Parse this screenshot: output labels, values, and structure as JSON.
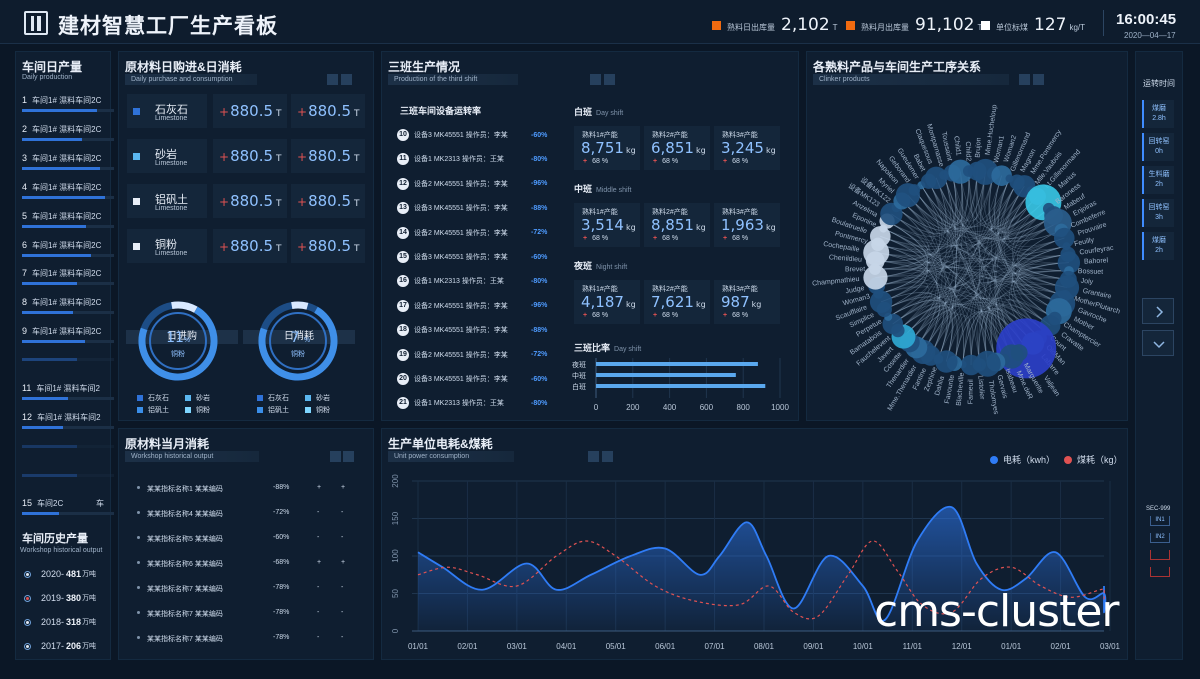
{
  "header": {
    "title": "建材智慧工厂生产看板",
    "stats": [
      {
        "label": "熟料日出库量",
        "value": "2,102",
        "unit": "T",
        "color": "#f06a10"
      },
      {
        "label": "熟料月出库量",
        "value": "91,102",
        "unit": "T",
        "color": "#f06a10"
      },
      {
        "label": "单位标煤",
        "value": "127",
        "unit": "kg/T",
        "color": "#ffffff"
      }
    ],
    "time": "16:00:45",
    "date": "2020—04—17"
  },
  "left": {
    "daily": {
      "title": "车间日产量",
      "subtitle": "Daily production",
      "items": [
        {
          "no": "1",
          "text": "车间1# 濕料车间2C",
          "fill": 0.82
        },
        {
          "no": "2",
          "text": "车间1# 濕料车间2C",
          "fill": 0.65
        },
        {
          "no": "3",
          "text": "车间1# 濕料车间2C",
          "fill": 0.85
        },
        {
          "no": "4",
          "text": "车间1# 濕料车间2C",
          "fill": 0.9
        },
        {
          "no": "5",
          "text": "车间1# 濕料车间2C",
          "fill": 0.7
        },
        {
          "no": "6",
          "text": "车间1# 濕料车间2C",
          "fill": 0.75
        },
        {
          "no": "7",
          "text": "车间1# 濕料车间2C",
          "fill": 0.6
        },
        {
          "no": "8",
          "text": "车间1# 濕料车间2C",
          "fill": 0.55
        },
        {
          "no": "9",
          "text": "车间1# 濕料车间2C",
          "fill": 0.68
        },
        {
          "no": "11",
          "text": "车间1# 濕料车间2",
          "fill": 0.5
        },
        {
          "no": "12",
          "text": "车间1# 濕料车间2",
          "fill": 0.45
        },
        {
          "no": "15",
          "text": "车间2C",
          "fill": 0.4
        }
      ],
      "item15_suffix": "车"
    },
    "history": {
      "title": "车间历史产量",
      "subtitle": "Workshop historical output",
      "items": [
        {
          "year": "2020-",
          "value": "481",
          "unit": "万吨",
          "red": false
        },
        {
          "year": "2019-",
          "value": "380",
          "unit": "万吨",
          "red": true
        },
        {
          "year": "2018-",
          "value": "318",
          "unit": "万吨",
          "red": false
        },
        {
          "year": "2017-",
          "value": "206",
          "unit": "万吨",
          "red": false
        }
      ]
    }
  },
  "materials": {
    "title": "原材料日购进&日消耗",
    "subtitle": "Daily purchase and consumption",
    "items": [
      {
        "cn": "石灰石",
        "en": "Limestone",
        "icon_color": "#2f72d8",
        "v1": "880.5",
        "v2": "880.5",
        "unit": "T"
      },
      {
        "cn": "砂岩",
        "en": "Limestone",
        "icon_color": "#5bb7f0",
        "v1": "880.5",
        "v2": "880.5",
        "unit": "T"
      },
      {
        "cn": "铝矾土",
        "en": "Limestone",
        "icon_color": "#e8eef7",
        "v1": "880.5",
        "v2": "880.5",
        "unit": "T"
      },
      {
        "cn": "铜粉",
        "en": "Limestone",
        "icon_color": "#e8eef7",
        "v1": "880.5",
        "v2": "880.5",
        "unit": "T"
      }
    ],
    "plus": "+",
    "donuts": [
      {
        "head": "日进购",
        "value": "11",
        "pct_unit": "%",
        "label": "铜粉",
        "fill": 0.11
      },
      {
        "head": "日消耗",
        "value": "7",
        "pct_unit": "%",
        "label": "铜粉",
        "fill": 0.07
      }
    ],
    "legend": [
      {
        "name": "石灰石",
        "color": "#2f72d8"
      },
      {
        "name": "砂岩",
        "color": "#5bb7f0"
      },
      {
        "name": "铝矾土",
        "color": "#3a8ee8"
      },
      {
        "name": "铜粉",
        "color": "#7fd6ff"
      }
    ]
  },
  "monthly": {
    "title": "原材料当月消耗",
    "subtitle": "Workshop historical output",
    "rows": [
      {
        "name": "某某指标名称1 某某编码",
        "pct": "-88%",
        "a": "+",
        "b": "+"
      },
      {
        "name": "某某指标名称4 某某编码",
        "pct": "-72%",
        "a": "-",
        "b": "-"
      },
      {
        "name": "某某指标名称5 某某编码",
        "pct": "-60%",
        "a": "-",
        "b": "-"
      },
      {
        "name": "某某指标名称6 某某编码",
        "pct": "-68%",
        "a": "+",
        "b": "+"
      },
      {
        "name": "某某指标名称7 某某编码",
        "pct": "-78%",
        "a": "-",
        "b": "-"
      },
      {
        "name": "某某指标名称7 某某编码",
        "pct": "-78%",
        "a": "-",
        "b": "-"
      },
      {
        "name": "某某指标名称7 某某编码",
        "pct": "-78%",
        "a": "-",
        "b": "-"
      }
    ]
  },
  "shift": {
    "title": "三班生产情况",
    "subtitle": "Production of the third shift",
    "equip_title": "三班车间设备运转率",
    "equipment": [
      {
        "no": "10",
        "text": "设备3 MK45551 操作员：李某",
        "pct": "-60%"
      },
      {
        "no": "11",
        "text": "设备1 MK2313 操作员：王某",
        "pct": "-80%"
      },
      {
        "no": "12",
        "text": "设备2 MK45551 操作员：李某",
        "pct": "-96%"
      },
      {
        "no": "13",
        "text": "设备3 MK45551 操作员：李某",
        "pct": "-88%"
      },
      {
        "no": "14",
        "text": "设备2 MK45551 操作员：李某",
        "pct": "-72%"
      },
      {
        "no": "15",
        "text": "设备3 MK45551 操作员：李某",
        "pct": "-60%"
      },
      {
        "no": "16",
        "text": "设备1 MK2313 操作员：王某",
        "pct": "-80%"
      },
      {
        "no": "17",
        "text": "设备2 MK45551 操作员：李某",
        "pct": "-96%"
      },
      {
        "no": "18",
        "text": "设备3 MK45551 操作员：李某",
        "pct": "-88%"
      },
      {
        "no": "19",
        "text": "设备2 MK45551 操作员：李某",
        "pct": "-72%"
      },
      {
        "no": "20",
        "text": "设备3 MK45551 操作员：李某",
        "pct": "-60%"
      },
      {
        "no": "21",
        "text": "设备1 MK2313 操作员：王某",
        "pct": "-80%"
      }
    ],
    "groups": [
      {
        "cn": "白班",
        "en": "Day shift",
        "cells": [
          {
            "label": "熟料1#产能",
            "value": "8,751",
            "unit": "kg",
            "pct": "68 %"
          },
          {
            "label": "熟料2#产能",
            "value": "6,851",
            "unit": "kg",
            "pct": "68 %"
          },
          {
            "label": "熟料3#产能",
            "value": "3,245",
            "unit": "kg",
            "pct": "68 %"
          }
        ]
      },
      {
        "cn": "中班",
        "en": "Middle shift",
        "cells": [
          {
            "label": "熟料1#产能",
            "value": "3,514",
            "unit": "kg",
            "pct": "68 %"
          },
          {
            "label": "熟料2#产能",
            "value": "8,851",
            "unit": "kg",
            "pct": "68 %"
          },
          {
            "label": "熟料3#产能",
            "value": "1,963",
            "unit": "kg",
            "pct": "68 %"
          }
        ]
      },
      {
        "cn": "夜班",
        "en": "Night shift",
        "cells": [
          {
            "label": "熟料1#产能",
            "value": "4,187",
            "unit": "kg",
            "pct": "68 %"
          },
          {
            "label": "熟料2#产能",
            "value": "7,621",
            "unit": "kg",
            "pct": "68 %"
          },
          {
            "label": "熟料3#产能",
            "value": "987",
            "unit": "kg",
            "pct": "68 %"
          }
        ]
      }
    ],
    "plus": "+",
    "ratio_title": "三班比率",
    "ratio_sub": "Day shift"
  },
  "products": {
    "title": "各熟料产品与车间生产工序关系",
    "subtitle": "Clinker products",
    "labels": [
      "Gueulemer",
      "Babet",
      "Claquesous",
      "Montparnasse",
      "Toussaint",
      "Child1",
      "Child2",
      "Brujon",
      "Mme.Hucheloup",
      "Woman1",
      "Woman2",
      "Gillenormand",
      "Magnon",
      "Mme.Pontmercy",
      "Mlle.Vaubois",
      "Lt.Gillenormand",
      "Marius",
      "Baroness",
      "Mabeuf",
      "Enjolras",
      "Combeferre",
      "Prouvaire",
      "Feuilly",
      "Courfeyrac",
      "Bahorel",
      "Bossuet",
      "Joly",
      "Grantaire",
      "MotherPlutarch",
      "Gavroche",
      "Mother",
      "Champtercier",
      "Cravatte",
      "Count",
      "OldMan",
      "Labarre",
      "Valjean",
      "Marguerite",
      "Mme.deR",
      "Isabeau",
      "Gervais",
      "Tholomyes",
      "Listolier",
      "Fameuil",
      "Blacheville",
      "Favourite",
      "Dahlia",
      "Zephine",
      "Fantine",
      "Mme.Thenardier",
      "Thenardier",
      "Cosette",
      "Javert",
      "Fauchelevent",
      "Bamatabois",
      "Perpetue",
      "Simplice",
      "Scaufflaire",
      "Woman3",
      "Judge",
      "Champmathieu",
      "Brevet",
      "Chenildieu",
      "Cochepaille",
      "Pontmercy",
      "Boulatruelle",
      "Eponine",
      "Anzelma",
      "设备MK123",
      "设备MK122",
      "Myriel",
      "Napoleon",
      "Geborand"
    ]
  },
  "power": {
    "title": "生产单位电耗&煤耗",
    "subtitle": "Unit power consumption",
    "legend_power": "电耗（kwh）",
    "legend_coal": "煤耗（kg）"
  },
  "side": {
    "title": "运转时间",
    "items": [
      {
        "name": "煤磨",
        "value": "2.8h"
      },
      {
        "name": "回转窑",
        "value": "0h"
      },
      {
        "name": "生料磨",
        "value": "2h"
      },
      {
        "name": "回转窑",
        "value": "3h"
      },
      {
        "name": "煤磨",
        "value": "2h"
      }
    ],
    "code": "SEC-999",
    "tags": [
      "IN1",
      "IN2",
      "",
      ""
    ]
  },
  "watermark": "cms-cluster",
  "chart_data": [
    {
      "type": "bar",
      "orientation": "horizontal",
      "title": "三班比率",
      "subtitle": "Day shift",
      "categories": [
        "夜班",
        "中班",
        "白班"
      ],
      "values": [
        880,
        760,
        920
      ],
      "xlim": [
        0,
        1000
      ],
      "xticks": [
        "0",
        "200",
        "400",
        "600",
        "800",
        "1000"
      ]
    },
    {
      "type": "line",
      "title": "生产单位电耗&煤耗",
      "x": [
        "01/01",
        "02/01",
        "03/01",
        "04/01",
        "05/01",
        "06/01",
        "07/01",
        "08/01",
        "09/01",
        "10/01",
        "11/01",
        "12/01",
        "01/01",
        "02/01",
        "03/01"
      ],
      "ylim": [
        0,
        200
      ],
      "yticks": [
        "0",
        "50",
        "100",
        "150",
        "200"
      ],
      "series": [
        {
          "name": "电耗（kwh）",
          "color": "#2f7cf6",
          "style": "solid-area",
          "points": [
            [
              0,
              105
            ],
            [
              0.5,
              85
            ],
            [
              1.3,
              55
            ],
            [
              2.2,
              90
            ],
            [
              2.8,
              55
            ],
            [
              3.5,
              75
            ],
            [
              4.3,
              100
            ],
            [
              5.0,
              110
            ],
            [
              5.7,
              75
            ],
            [
              6.1,
              100
            ],
            [
              6.65,
              145
            ],
            [
              7.05,
              100
            ],
            [
              7.6,
              30
            ],
            [
              8.3,
              100
            ],
            [
              9.0,
              60
            ],
            [
              9.45,
              15
            ],
            [
              10.1,
              120
            ],
            [
              10.8,
              165
            ],
            [
              11.3,
              90
            ],
            [
              11.8,
              55
            ],
            [
              12.3,
              70
            ],
            [
              12.9,
              105
            ],
            [
              13.5,
              45
            ],
            [
              14.0,
              50
            ],
            [
              14.5,
              25
            ],
            [
              15.2,
              60
            ]
          ]
        },
        {
          "name": "煤耗（kg）",
          "color": "#e05252",
          "style": "dashed",
          "points": [
            [
              0,
              75
            ],
            [
              0.6,
              85
            ],
            [
              1.2,
              75
            ],
            [
              2.0,
              60
            ],
            [
              2.8,
              100
            ],
            [
              3.4,
              120
            ],
            [
              4.0,
              100
            ],
            [
              4.8,
              60
            ],
            [
              5.6,
              40
            ],
            [
              6.5,
              35
            ],
            [
              7.1,
              60
            ],
            [
              7.6,
              25
            ],
            [
              8.1,
              20
            ],
            [
              8.7,
              75
            ],
            [
              9.2,
              120
            ],
            [
              9.7,
              80
            ],
            [
              10.2,
              35
            ],
            [
              10.8,
              25
            ],
            [
              11.4,
              70
            ],
            [
              12.0,
              85
            ],
            [
              12.6,
              60
            ],
            [
              13.2,
              45
            ],
            [
              13.8,
              55
            ],
            [
              14.4,
              55
            ],
            [
              15.2,
              40
            ]
          ]
        }
      ]
    }
  ]
}
